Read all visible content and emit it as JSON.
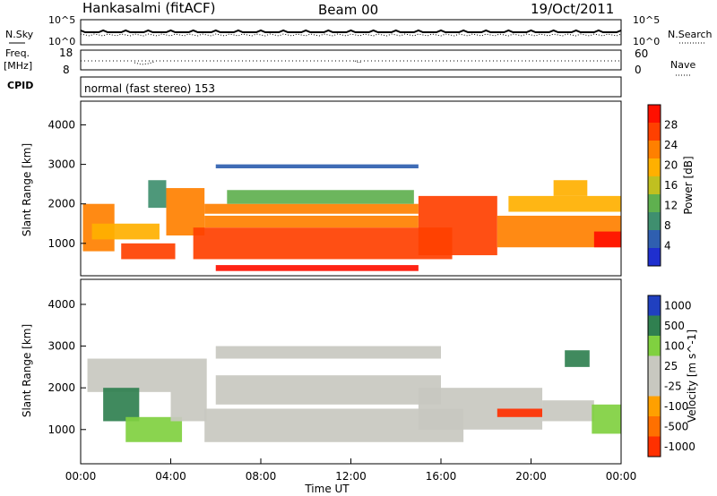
{
  "header": {
    "station": "Hankasalmi (fitACF)",
    "beam": "Beam 00",
    "date": "19/Oct/2011"
  },
  "panels": {
    "nsky_label": "N.Sky",
    "nsky_ticks": [
      "10^5",
      "10^0"
    ],
    "nsearch_label": "N.Search",
    "nsearch_ticks": [
      "10^5",
      "10^0"
    ],
    "freq_label_1": "Freq.",
    "freq_label_2": "[MHz]",
    "freq_ticks": [
      "18",
      "8"
    ],
    "nave_label": "Nave",
    "nave_ticks": [
      "60",
      "0"
    ],
    "cpid_label": "CPID",
    "cpid_text": "normal (fast stereo) 153"
  },
  "colors": {
    "frame": "#000000",
    "power_scale": [
      "#1f2fcf",
      "#2f5fb0",
      "#3f8f6f",
      "#5fb04f",
      "#c0c020",
      "#ffb000",
      "#ff8000",
      "#ff4000",
      "#ff1000"
    ],
    "velocity_scale": [
      "#2040c0",
      "#308050",
      "#40a040",
      "#80d040",
      "#c8c8c0",
      "#d0d0c8",
      "#ffa000",
      "#ff7000",
      "#ff3000",
      "#ff0000"
    ]
  },
  "chart_data": [
    {
      "type": "heatmap",
      "panel": "power",
      "ylabel": "Slant Range [km]",
      "ylim": [
        180,
        4600
      ],
      "y_ticks": [
        1000,
        2000,
        3000,
        4000
      ],
      "xlim": [
        0,
        24
      ],
      "colorbar_label": "Power [dB]",
      "colorbar_ticks": [
        4,
        8,
        12,
        16,
        20,
        24,
        28
      ],
      "colorbar_range": [
        0,
        32
      ],
      "bands": [
        {
          "t0": 0.1,
          "t1": 1.5,
          "r0": 800,
          "r1": 2000,
          "value": 24
        },
        {
          "t0": 0.5,
          "t1": 3.5,
          "r0": 1100,
          "r1": 1500,
          "value": 20
        },
        {
          "t0": 1.8,
          "t1": 4.2,
          "r0": 600,
          "r1": 1000,
          "value": 26
        },
        {
          "t0": 3.0,
          "t1": 3.8,
          "r0": 1900,
          "r1": 2600,
          "value": 8
        },
        {
          "t0": 3.8,
          "t1": 5.5,
          "r0": 1200,
          "r1": 2400,
          "value": 22
        },
        {
          "t0": 5.0,
          "t1": 16.5,
          "r0": 600,
          "r1": 1400,
          "value": 27
        },
        {
          "t0": 5.5,
          "t1": 15.0,
          "r0": 1400,
          "r1": 1700,
          "value": 24
        },
        {
          "t0": 5.5,
          "t1": 15.0,
          "r0": 1750,
          "r1": 2000,
          "value": 22
        },
        {
          "t0": 6.5,
          "t1": 14.8,
          "r0": 2000,
          "r1": 2350,
          "value": 12
        },
        {
          "t0": 6.0,
          "t1": 15.0,
          "r0": 2900,
          "r1": 3000,
          "value": 6
        },
        {
          "t0": 6.0,
          "t1": 15.0,
          "r0": 300,
          "r1": 450,
          "value": 29
        },
        {
          "t0": 15.0,
          "t1": 18.5,
          "r0": 700,
          "r1": 2200,
          "value": 25
        },
        {
          "t0": 18.5,
          "t1": 24.0,
          "r0": 900,
          "r1": 1700,
          "value": 24
        },
        {
          "t0": 19.0,
          "t1": 24.0,
          "r0": 1800,
          "r1": 2200,
          "value": 20
        },
        {
          "t0": 21.0,
          "t1": 22.5,
          "r0": 2200,
          "r1": 2600,
          "value": 21
        },
        {
          "t0": 22.8,
          "t1": 24.0,
          "r0": 900,
          "r1": 1300,
          "value": 29
        }
      ]
    },
    {
      "type": "heatmap",
      "panel": "velocity",
      "ylabel": "Slant Range [km]",
      "ylim": [
        180,
        4600
      ],
      "y_ticks": [
        1000,
        2000,
        3000,
        4000
      ],
      "xlim": [
        0,
        24
      ],
      "xlabel": "Time UT",
      "x_ticks": [
        "00:00",
        "04:00",
        "08:00",
        "12:00",
        "16:00",
        "20:00",
        "00:00"
      ],
      "colorbar_label": "Velocity [m s^-1]",
      "colorbar_ticks": [
        "1000",
        "500",
        "100",
        "25",
        "-25",
        "-100",
        "-500",
        "-1000"
      ],
      "bands": [
        {
          "t0": 0.3,
          "t1": 4.0,
          "r0": 1900,
          "r1": 2700,
          "value": 0
        },
        {
          "t0": 1.0,
          "t1": 2.6,
          "r0": 1200,
          "r1": 2000,
          "value": 300
        },
        {
          "t0": 2.0,
          "t1": 4.5,
          "r0": 700,
          "r1": 1300,
          "value": 80
        },
        {
          "t0": 4.0,
          "t1": 5.6,
          "r0": 1200,
          "r1": 2700,
          "value": 0
        },
        {
          "t0": 5.5,
          "t1": 17.0,
          "r0": 700,
          "r1": 1500,
          "value": 0
        },
        {
          "t0": 6.0,
          "t1": 16.0,
          "r0": 1600,
          "r1": 2300,
          "value": 0
        },
        {
          "t0": 6.0,
          "t1": 16.0,
          "r0": 2700,
          "r1": 3000,
          "value": 0
        },
        {
          "t0": 15.0,
          "t1": 20.5,
          "r0": 1000,
          "r1": 2000,
          "value": 0
        },
        {
          "t0": 18.5,
          "t1": 20.5,
          "r0": 1300,
          "r1": 1500,
          "value": -700
        },
        {
          "t0": 20.5,
          "t1": 22.8,
          "r0": 1200,
          "r1": 1700,
          "value": 0
        },
        {
          "t0": 21.5,
          "t1": 22.6,
          "r0": 2500,
          "r1": 2900,
          "value": 300
        },
        {
          "t0": 22.7,
          "t1": 24.0,
          "r0": 900,
          "r1": 1600,
          "value": 60
        }
      ]
    }
  ]
}
